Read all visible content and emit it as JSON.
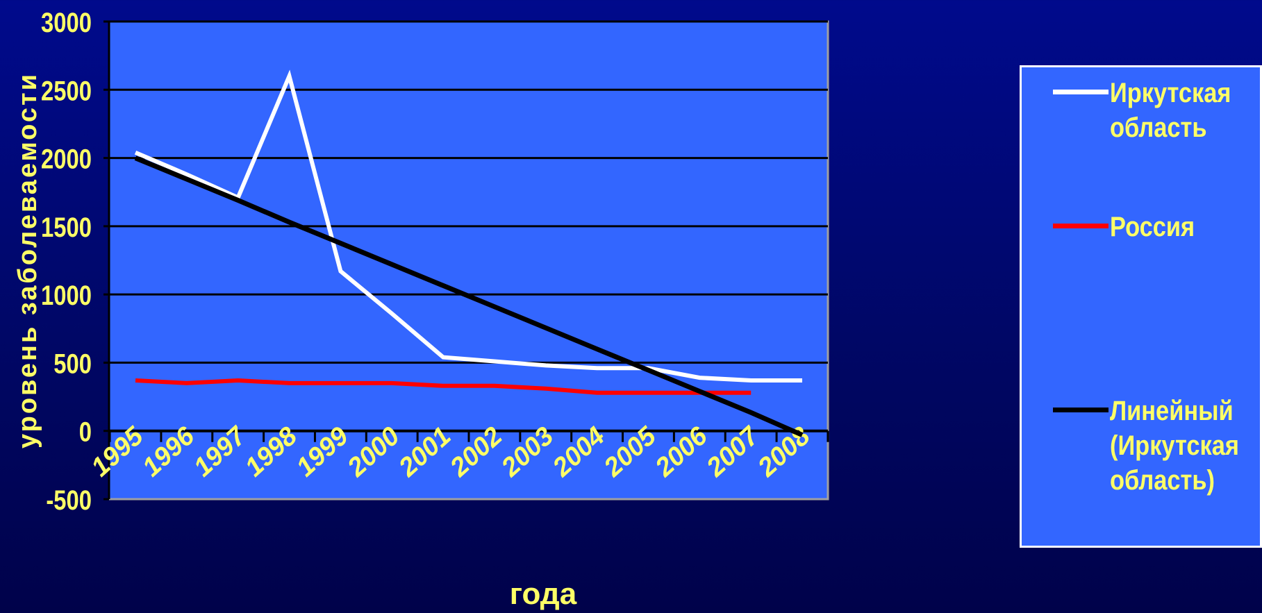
{
  "chart_data": {
    "type": "line",
    "xlabel": "года",
    "ylabel": "уровень заболеваемости",
    "ylim": [
      -500,
      3000
    ],
    "yticks": [
      "3000",
      "2500",
      "2000",
      "1500",
      "1000",
      "500",
      "0",
      "-500"
    ],
    "categories": [
      "1995",
      "1996",
      "1997",
      "1998",
      "1999",
      "2000",
      "2001",
      "2002",
      "2003",
      "2004",
      "2005",
      "2006",
      "2007",
      "2008"
    ],
    "grid": true,
    "legend_position": "right",
    "series": [
      {
        "name": "Иркутская область",
        "color": "#ffffff",
        "values": [
          2040,
          1880,
          1710,
          2600,
          1170,
          860,
          540,
          510,
          480,
          460,
          460,
          390,
          370,
          370
        ]
      },
      {
        "name": "Россия",
        "color": "#ff0000",
        "values": [
          370,
          350,
          370,
          350,
          350,
          350,
          330,
          330,
          310,
          280,
          280,
          280,
          280,
          null
        ]
      },
      {
        "name": "Линейный (Иркутская область)",
        "color": "#000000",
        "trend": "linear",
        "values": [
          2000,
          1845,
          1690,
          1530,
          1375,
          1220,
          1065,
          910,
          755,
          600,
          445,
          290,
          135,
          -30
        ]
      }
    ]
  },
  "colors": {
    "background": "#000a8c",
    "plot_area": "#3366ff",
    "text": "#ffff66",
    "gridline": "#000000"
  }
}
